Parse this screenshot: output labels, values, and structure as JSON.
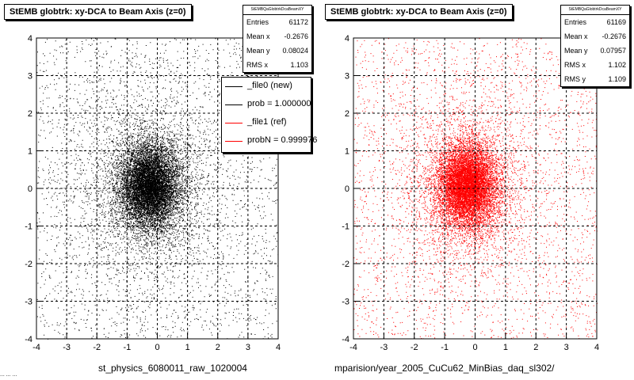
{
  "footer_text": "... ... ...",
  "chart_data": [
    {
      "type": "scatter",
      "title": "StEMB globtrk: xy-DCA to Beam Axis (z=0)",
      "color": "#000000",
      "xlabel": "st_physics_6080011_raw_1020004",
      "ylabel": "",
      "xlim": [
        -4,
        4
      ],
      "ylim": [
        -4,
        4
      ],
      "xticks": [
        -4,
        -3,
        -2,
        -1,
        0,
        1,
        2,
        3,
        4
      ],
      "yticks": [
        -4,
        -3,
        -2,
        -1,
        0,
        1,
        2,
        3,
        4
      ],
      "grid": true,
      "stats": {
        "name": "StEMBQaGlobtrkDcaBeamXY",
        "rows": [
          {
            "label": "Entries",
            "value": "61172"
          },
          {
            "label": "Mean x",
            "value": "-0.2676"
          },
          {
            "label": "Mean y",
            "value": "0.08024"
          },
          {
            "label": "RMS x",
            "value": "1.103"
          }
        ]
      },
      "legend": [
        {
          "label": "_file0 (new)",
          "color": "#000000"
        },
        {
          "label": "prob = 1.000000",
          "color": "#000000"
        },
        {
          "label": "_file1 (ref)",
          "color": "#ff0000"
        },
        {
          "label": "probN = 0.999976",
          "color": "#ff0000"
        }
      ]
    },
    {
      "type": "scatter",
      "title": "StEMB globtrk: xy-DCA to Beam Axis (z=0)",
      "color": "#ff0000",
      "xlabel": "mparision/year_2005_CuCu62_MinBias_daq_sl302/",
      "ylabel": "",
      "xlim": [
        -4,
        4
      ],
      "ylim": [
        -4,
        4
      ],
      "xticks": [
        -4,
        -3,
        -2,
        -1,
        0,
        1,
        2,
        3,
        4
      ],
      "yticks": [
        -4,
        -3,
        -2,
        -1,
        0,
        1,
        2,
        3,
        4
      ],
      "grid": true,
      "stats": {
        "name": "StEMBQaGlobtrkDcaBeamXY",
        "rows": [
          {
            "label": "Entries",
            "value": "61169"
          },
          {
            "label": "Mean x",
            "value": "-0.2676"
          },
          {
            "label": "Mean y",
            "value": "0.07957"
          },
          {
            "label": "RMS x",
            "value": "1.102"
          },
          {
            "label": "RMS y",
            "value": "1.109"
          }
        ]
      }
    }
  ]
}
